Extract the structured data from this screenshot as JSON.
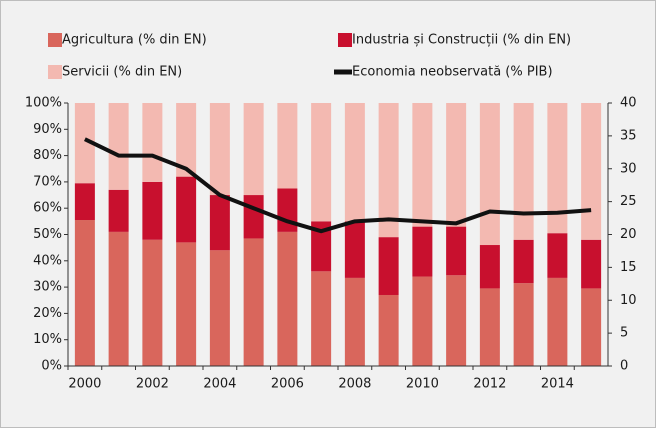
{
  "chart_data": {
    "type": "stacked_bar_line",
    "categories": [
      "2000",
      null,
      "2002",
      null,
      "2004",
      null,
      "2006",
      null,
      "2008",
      null,
      "2010",
      null,
      "2012",
      null,
      "2014",
      null
    ],
    "series": [
      {
        "name": "Agricultura (% din EN)",
        "color": "#d9665c",
        "values": [
          55.5,
          51,
          48,
          47,
          44,
          48.5,
          51,
          36,
          33.5,
          27,
          34,
          34.5,
          29.5,
          31.5,
          33.5,
          29.5
        ]
      },
      {
        "name": "Industria și Construcții (% din EN)",
        "color": "#c8102e",
        "values": [
          14,
          16,
          22,
          25,
          21,
          16.5,
          16.5,
          19,
          21.5,
          22,
          19,
          18.5,
          16.5,
          16.5,
          17,
          18.5
        ]
      },
      {
        "name": "Servicii (% din EN)",
        "color": "#f3b9b1",
        "values": [
          30.5,
          33,
          30,
          28,
          35,
          35,
          32.5,
          45,
          45,
          51,
          47,
          47,
          54,
          52,
          49.5,
          52
        ]
      },
      {
        "name": "Economia neobservată (% PIB)",
        "color": "#111111",
        "axis": "y2",
        "values": [
          34.5,
          32,
          32,
          30,
          26,
          24,
          22,
          20.5,
          22,
          22.3,
          22,
          21.7,
          23.5,
          23.2,
          23.3,
          23.7
        ]
      }
    ],
    "ylim": [
      0,
      100
    ],
    "yticks": [
      {
        "value": 0,
        "label": "0%"
      },
      {
        "value": 10,
        "label": "10%"
      },
      {
        "value": 20,
        "label": "20%"
      },
      {
        "value": 30,
        "label": "30%"
      },
      {
        "value": 40,
        "label": "40%"
      },
      {
        "value": 50,
        "label": "50%"
      },
      {
        "value": 60,
        "label": "60%"
      },
      {
        "value": 70,
        "label": "70%"
      },
      {
        "value": 80,
        "label": "80%"
      },
      {
        "value": 90,
        "label": "90%"
      },
      {
        "value": 100,
        "label": "100%"
      }
    ],
    "y2lim": [
      0,
      40
    ],
    "y2ticks": [
      0,
      5,
      10,
      15,
      20,
      25,
      30,
      35,
      40
    ],
    "grid": false
  }
}
